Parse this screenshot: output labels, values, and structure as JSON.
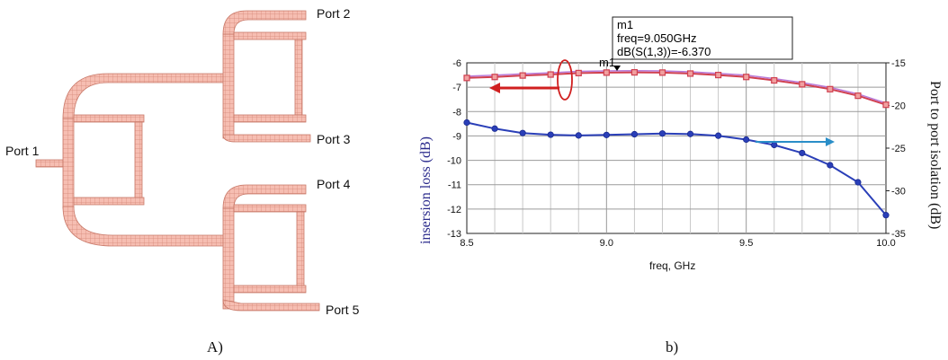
{
  "layout_diagram": {
    "ports": [
      "Port 1",
      "Port 2",
      "Port 3",
      "Port 4",
      "Port 5"
    ],
    "caption": "A)",
    "trace_color": "#f0a898"
  },
  "chart_caption": "b)",
  "marker_box": {
    "name": "m1",
    "freq_line": "freq=9.050GHz",
    "value_line": "dB(S(1,3))=-6.370",
    "point_label": "m1"
  },
  "chart_data": {
    "type": "line",
    "xlabel": "freq, GHz",
    "ylabel_left": "insersion loss (dB)",
    "ylabel_right": "Port to port isolation (dB)",
    "xlim": [
      8.5,
      10.0
    ],
    "ylim_left": [
      -13,
      -6
    ],
    "ylim_right": [
      -35,
      -15
    ],
    "x_ticks": [
      "8.5",
      "9.0",
      "9.5",
      "10.0"
    ],
    "y_left_ticks": [
      "-6",
      "-7",
      "-8",
      "-9",
      "-10",
      "-11",
      "-12",
      "-13"
    ],
    "y_right_ticks": [
      "-15",
      "-20",
      "-25",
      "-30",
      "-35"
    ],
    "grid": true,
    "series": [
      {
        "axis": "left",
        "color": "#d04050",
        "marker": "square",
        "x": [
          8.5,
          8.6,
          8.7,
          8.8,
          8.9,
          9.0,
          9.1,
          9.2,
          9.3,
          9.4,
          9.5,
          9.6,
          9.7,
          9.8,
          9.9,
          10.0
        ],
        "y": [
          -6.62,
          -6.58,
          -6.52,
          -6.48,
          -6.42,
          -6.4,
          -6.39,
          -6.4,
          -6.44,
          -6.5,
          -6.58,
          -6.72,
          -6.88,
          -7.08,
          -7.35,
          -7.72
        ]
      },
      {
        "axis": "left",
        "color": "#b87ad8",
        "marker": "none",
        "x": [
          8.5,
          8.6,
          8.7,
          8.8,
          8.9,
          9.0,
          9.1,
          9.2,
          9.3,
          9.4,
          9.5,
          9.6,
          9.7,
          9.8,
          9.9,
          10.0
        ],
        "y": [
          -6.55,
          -6.51,
          -6.45,
          -6.41,
          -6.35,
          -6.33,
          -6.32,
          -6.33,
          -6.37,
          -6.43,
          -6.51,
          -6.65,
          -6.81,
          -7.01,
          -7.28,
          -7.65
        ]
      },
      {
        "axis": "left",
        "color": "#2a3fb8",
        "marker": "circle",
        "x": [
          8.5,
          8.6,
          8.7,
          8.8,
          8.9,
          9.0,
          9.1,
          9.2,
          9.3,
          9.4,
          9.5,
          9.6,
          9.7,
          9.8,
          9.9,
          10.0
        ],
        "y": [
          -8.45,
          -8.7,
          -8.88,
          -8.95,
          -8.98,
          -8.96,
          -8.93,
          -8.9,
          -8.92,
          -8.99,
          -9.15,
          -9.37,
          -9.7,
          -10.2,
          -10.9,
          -12.25
        ]
      }
    ]
  }
}
